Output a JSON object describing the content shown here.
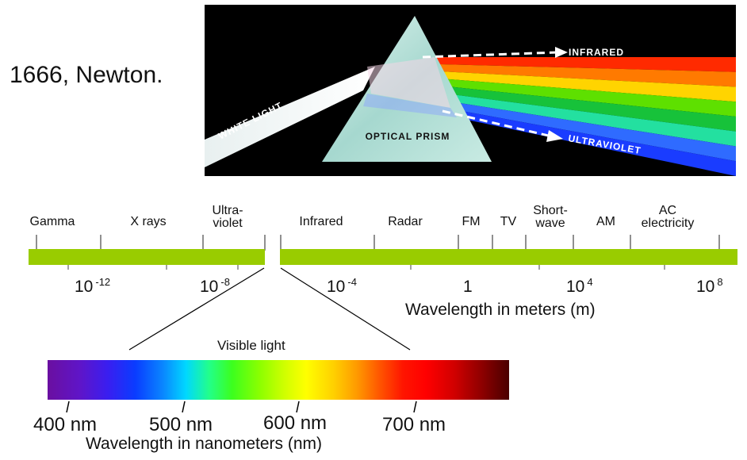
{
  "title": "1666, Newton.",
  "prism": {
    "white_light": "WHITE LIGHT",
    "prism_label": "OPTICAL PRISM",
    "infrared": "INFRARED",
    "ultraviolet": "ULTRAVIOLET",
    "spectrum_colors": [
      "#ff2a00",
      "#ff7a00",
      "#ffd400",
      "#5ee000",
      "#17c23a",
      "#23e0a0",
      "#2f6bff",
      "#1a3cff"
    ]
  },
  "spectrum": {
    "bands": [
      {
        "label": "Gamma"
      },
      {
        "label": "X rays"
      },
      {
        "label": "Ultra-",
        "label2": "violet"
      },
      {
        "label": "Infrared"
      },
      {
        "label": "Radar"
      },
      {
        "label": "FM"
      },
      {
        "label": "TV"
      },
      {
        "label": "Short-",
        "label2": "wave"
      },
      {
        "label": "AM"
      },
      {
        "label": "AC",
        "label2": "electricity"
      }
    ],
    "ticks": [
      {
        "base": "10",
        "exp": "-12"
      },
      {
        "base": "10",
        "exp": "-8"
      },
      {
        "base": "10",
        "exp": "-4"
      },
      {
        "base": "1",
        "exp": ""
      },
      {
        "base": "10",
        "exp": "4"
      },
      {
        "base": "10",
        "exp": "8"
      }
    ],
    "axis_title": "Wavelength in meters (m)",
    "bar_color": "#99cc00"
  },
  "visible": {
    "label": "Visible light",
    "ticks": [
      "400 nm",
      "500 nm",
      "600 nm",
      "700 nm"
    ],
    "axis_title": "Wavelength in nanometers (nm)"
  }
}
